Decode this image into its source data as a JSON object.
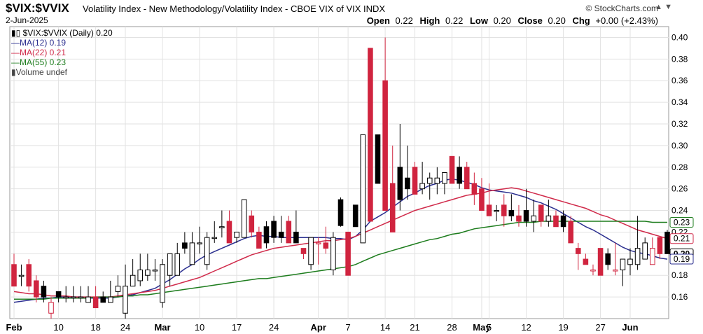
{
  "header": {
    "symbol": "$VIX:$VVIX",
    "description": "Volatility Index - New Methodology/Volatility Index - CBOE VIX of VIX  INDX",
    "date": "2-Jun-2025",
    "brand": "© StockCharts.com",
    "arrows": "▲ ▼",
    "ohlc": {
      "open_label": "Open",
      "open": "0.22",
      "high_label": "High",
      "high": "0.22",
      "low_label": "Low",
      "low": "0.20",
      "close_label": "Close",
      "close": "0.20",
      "chg_label": "Chg",
      "chg": "+0.00 (+2.43%)"
    }
  },
  "legend": [
    {
      "text": "$VIX:$VVIX (Daily) 0.20",
      "color": "#000000",
      "icon": "candle-icon"
    },
    {
      "text": "MA(12) 0.19",
      "color": "#2b2f8f",
      "icon": "line-icon"
    },
    {
      "text": "MA(22) 0.21",
      "color": "#d02a4a",
      "icon": "line-icon"
    },
    {
      "text": "MA(55) 0.23",
      "color": "#1e7d1e",
      "icon": "line-icon"
    },
    {
      "text": "Volume undef",
      "color": "#444444",
      "icon": "volume-bars-icon"
    }
  ],
  "chart_data": {
    "type": "candlestick",
    "ylim": [
      0.14,
      0.41
    ],
    "y_ticks": [
      0.16,
      0.18,
      0.2,
      0.22,
      0.24,
      0.26,
      0.28,
      0.3,
      0.32,
      0.34,
      0.36,
      0.38,
      0.4
    ],
    "y_tick_labels": [
      "0.16",
      "0.18",
      "0.20",
      "0.22",
      "0.24",
      "0.26",
      "0.28",
      "0.30",
      "0.32",
      "0.34",
      "0.36",
      "0.38",
      "0.40"
    ],
    "x_ticks": [
      {
        "label": "Feb",
        "index": 0
      },
      {
        "label": "10",
        "index": 6
      },
      {
        "label": "18",
        "index": 11
      },
      {
        "label": "24",
        "index": 15
      },
      {
        "label": "Mar",
        "index": 20
      },
      {
        "label": "10",
        "index": 25
      },
      {
        "label": "17",
        "index": 30
      },
      {
        "label": "24",
        "index": 35
      },
      {
        "label": "Apr",
        "index": 41
      },
      {
        "label": "7",
        "index": 45
      },
      {
        "label": "14",
        "index": 50
      },
      {
        "label": "21",
        "index": 54
      },
      {
        "label": "28",
        "index": 59
      },
      {
        "label": "May",
        "index": 63
      },
      {
        "label": "5",
        "index": 64
      },
      {
        "label": "12",
        "index": 69
      },
      {
        "label": "19",
        "index": 74
      },
      {
        "label": "27",
        "index": 79
      },
      {
        "label": "Jun",
        "index": 83
      }
    ],
    "candles": [
      {
        "o": 0.19,
        "h": 0.2,
        "l": 0.17,
        "c": 0.17
      },
      {
        "o": 0.18,
        "h": 0.19,
        "l": 0.17,
        "c": 0.18
      },
      {
        "o": 0.19,
        "h": 0.195,
        "l": 0.165,
        "c": 0.17
      },
      {
        "o": 0.175,
        "h": 0.18,
        "l": 0.155,
        "c": 0.16
      },
      {
        "o": 0.17,
        "h": 0.175,
        "l": 0.155,
        "c": 0.16
      },
      {
        "o": 0.145,
        "h": 0.16,
        "l": 0.14,
        "c": 0.155
      },
      {
        "o": 0.165,
        "h": 0.165,
        "l": 0.155,
        "c": 0.16
      },
      {
        "o": 0.16,
        "h": 0.17,
        "l": 0.155,
        "c": 0.16
      },
      {
        "o": 0.16,
        "h": 0.17,
        "l": 0.155,
        "c": 0.16
      },
      {
        "o": 0.16,
        "h": 0.17,
        "l": 0.155,
        "c": 0.16
      },
      {
        "o": 0.155,
        "h": 0.17,
        "l": 0.155,
        "c": 0.16
      },
      {
        "o": 0.16,
        "h": 0.17,
        "l": 0.15,
        "c": 0.15
      },
      {
        "o": 0.16,
        "h": 0.165,
        "l": 0.155,
        "c": 0.155
      },
      {
        "o": 0.155,
        "h": 0.175,
        "l": 0.155,
        "c": 0.16
      },
      {
        "o": 0.165,
        "h": 0.18,
        "l": 0.16,
        "c": 0.17
      },
      {
        "o": 0.145,
        "h": 0.19,
        "l": 0.14,
        "c": 0.17
      },
      {
        "o": 0.17,
        "h": 0.195,
        "l": 0.17,
        "c": 0.18
      },
      {
        "o": 0.175,
        "h": 0.2,
        "l": 0.17,
        "c": 0.185
      },
      {
        "o": 0.18,
        "h": 0.2,
        "l": 0.175,
        "c": 0.185
      },
      {
        "o": 0.185,
        "h": 0.195,
        "l": 0.175,
        "c": 0.185
      },
      {
        "o": 0.155,
        "h": 0.195,
        "l": 0.15,
        "c": 0.19
      },
      {
        "o": 0.18,
        "h": 0.2,
        "l": 0.17,
        "c": 0.2
      },
      {
        "o": 0.18,
        "h": 0.21,
        "l": 0.18,
        "c": 0.2
      },
      {
        "o": 0.21,
        "h": 0.22,
        "l": 0.2,
        "c": 0.205
      },
      {
        "o": 0.19,
        "h": 0.22,
        "l": 0.19,
        "c": 0.21
      },
      {
        "o": 0.21,
        "h": 0.225,
        "l": 0.2,
        "c": 0.21
      },
      {
        "o": 0.19,
        "h": 0.22,
        "l": 0.185,
        "c": 0.215
      },
      {
        "o": 0.215,
        "h": 0.23,
        "l": 0.21,
        "c": 0.215
      },
      {
        "o": 0.225,
        "h": 0.24,
        "l": 0.215,
        "c": 0.225
      },
      {
        "o": 0.23,
        "h": 0.24,
        "l": 0.21,
        "c": 0.21
      },
      {
        "o": 0.215,
        "h": 0.22,
        "l": 0.21,
        "c": 0.22
      },
      {
        "o": 0.215,
        "h": 0.25,
        "l": 0.215,
        "c": 0.25
      },
      {
        "o": 0.235,
        "h": 0.24,
        "l": 0.215,
        "c": 0.22
      },
      {
        "o": 0.22,
        "h": 0.225,
        "l": 0.205,
        "c": 0.205
      },
      {
        "o": 0.225,
        "h": 0.23,
        "l": 0.205,
        "c": 0.21
      },
      {
        "o": 0.23,
        "h": 0.235,
        "l": 0.21,
        "c": 0.215
      },
      {
        "o": 0.22,
        "h": 0.235,
        "l": 0.21,
        "c": 0.215
      },
      {
        "o": 0.23,
        "h": 0.235,
        "l": 0.21,
        "c": 0.21
      },
      {
        "o": 0.22,
        "h": 0.24,
        "l": 0.21,
        "c": 0.21
      },
      {
        "o": 0.205,
        "h": 0.205,
        "l": 0.195,
        "c": 0.2
      },
      {
        "o": 0.19,
        "h": 0.215,
        "l": 0.185,
        "c": 0.215
      },
      {
        "o": 0.21,
        "h": 0.215,
        "l": 0.19,
        "c": 0.21
      },
      {
        "o": 0.21,
        "h": 0.225,
        "l": 0.2,
        "c": 0.205
      },
      {
        "o": 0.185,
        "h": 0.22,
        "l": 0.18,
        "c": 0.215
      },
      {
        "o": 0.25,
        "h": 0.252,
        "l": 0.225,
        "c": 0.226
      },
      {
        "o": 0.22,
        "h": 0.22,
        "l": 0.18,
        "c": 0.18
      },
      {
        "o": 0.245,
        "h": 0.245,
        "l": 0.225,
        "c": 0.225
      },
      {
        "o": 0.21,
        "h": 0.31,
        "l": 0.21,
        "c": 0.31
      },
      {
        "o": 0.39,
        "h": 0.39,
        "l": 0.23,
        "c": 0.23
      },
      {
        "o": 0.31,
        "h": 0.31,
        "l": 0.265,
        "c": 0.265
      },
      {
        "o": 0.36,
        "h": 0.4,
        "l": 0.24,
        "c": 0.24
      },
      {
        "o": 0.265,
        "h": 0.3,
        "l": 0.22,
        "c": 0.22
      },
      {
        "o": 0.28,
        "h": 0.32,
        "l": 0.24,
        "c": 0.25
      },
      {
        "o": 0.27,
        "h": 0.3,
        "l": 0.25,
        "c": 0.26
      },
      {
        "o": 0.28,
        "h": 0.285,
        "l": 0.255,
        "c": 0.255
      },
      {
        "o": 0.26,
        "h": 0.285,
        "l": 0.255,
        "c": 0.265
      },
      {
        "o": 0.265,
        "h": 0.275,
        "l": 0.25,
        "c": 0.27
      },
      {
        "o": 0.265,
        "h": 0.28,
        "l": 0.255,
        "c": 0.27
      },
      {
        "o": 0.265,
        "h": 0.275,
        "l": 0.255,
        "c": 0.275
      },
      {
        "o": 0.29,
        "h": 0.29,
        "l": 0.265,
        "c": 0.265
      },
      {
        "o": 0.28,
        "h": 0.29,
        "l": 0.26,
        "c": 0.265
      },
      {
        "o": 0.28,
        "h": 0.285,
        "l": 0.26,
        "c": 0.26
      },
      {
        "o": 0.265,
        "h": 0.275,
        "l": 0.245,
        "c": 0.255
      },
      {
        "o": 0.26,
        "h": 0.27,
        "l": 0.24,
        "c": 0.24
      },
      {
        "o": 0.245,
        "h": 0.265,
        "l": 0.235,
        "c": 0.235
      },
      {
        "o": 0.24,
        "h": 0.245,
        "l": 0.23,
        "c": 0.24
      },
      {
        "o": 0.245,
        "h": 0.255,
        "l": 0.225,
        "c": 0.235
      },
      {
        "o": 0.24,
        "h": 0.255,
        "l": 0.23,
        "c": 0.235
      },
      {
        "o": 0.235,
        "h": 0.245,
        "l": 0.225,
        "c": 0.23
      },
      {
        "o": 0.24,
        "h": 0.26,
        "l": 0.225,
        "c": 0.23
      },
      {
        "o": 0.23,
        "h": 0.25,
        "l": 0.22,
        "c": 0.235
      },
      {
        "o": 0.245,
        "h": 0.245,
        "l": 0.225,
        "c": 0.23
      },
      {
        "o": 0.23,
        "h": 0.25,
        "l": 0.225,
        "c": 0.235
      },
      {
        "o": 0.235,
        "h": 0.24,
        "l": 0.225,
        "c": 0.225
      },
      {
        "o": 0.235,
        "h": 0.24,
        "l": 0.22,
        "c": 0.225
      },
      {
        "o": 0.23,
        "h": 0.235,
        "l": 0.21,
        "c": 0.21
      },
      {
        "o": 0.205,
        "h": 0.21,
        "l": 0.185,
        "c": 0.2
      },
      {
        "o": 0.195,
        "h": 0.2,
        "l": 0.19,
        "c": 0.19
      },
      {
        "o": 0.185,
        "h": 0.19,
        "l": 0.18,
        "c": 0.185
      },
      {
        "o": 0.205,
        "h": 0.205,
        "l": 0.18,
        "c": 0.18
      },
      {
        "o": 0.2,
        "h": 0.205,
        "l": 0.185,
        "c": 0.19
      },
      {
        "o": 0.185,
        "h": 0.21,
        "l": 0.18,
        "c": 0.185
      },
      {
        "o": 0.185,
        "h": 0.195,
        "l": 0.17,
        "c": 0.195
      },
      {
        "o": 0.19,
        "h": 0.205,
        "l": 0.18,
        "c": 0.195
      },
      {
        "o": 0.19,
        "h": 0.235,
        "l": 0.185,
        "c": 0.205
      },
      {
        "o": 0.195,
        "h": 0.215,
        "l": 0.195,
        "c": 0.21
      },
      {
        "o": 0.19,
        "h": 0.215,
        "l": 0.19,
        "c": 0.205
      },
      {
        "o": 0.215,
        "h": 0.215,
        "l": 0.195,
        "c": 0.2
      },
      {
        "o": 0.22,
        "h": 0.222,
        "l": 0.2,
        "c": 0.2
      }
    ],
    "series": [
      {
        "name": "MA(12)",
        "color": "#2b2f8f",
        "values": [
          0.155,
          0.156,
          0.157,
          0.158,
          0.159,
          0.159,
          0.16,
          0.16,
          0.16,
          0.16,
          0.159,
          0.159,
          0.159,
          0.159,
          0.16,
          0.161,
          0.162,
          0.164,
          0.166,
          0.168,
          0.172,
          0.176,
          0.181,
          0.186,
          0.19,
          0.195,
          0.199,
          0.202,
          0.205,
          0.208,
          0.211,
          0.214,
          0.216,
          0.217,
          0.216,
          0.216,
          0.215,
          0.215,
          0.215,
          0.215,
          0.215,
          0.215,
          0.215,
          0.214,
          0.214,
          0.213,
          0.216,
          0.222,
          0.23,
          0.234,
          0.238,
          0.243,
          0.248,
          0.253,
          0.256,
          0.26,
          0.263,
          0.265,
          0.268,
          0.269,
          0.268,
          0.266,
          0.264,
          0.261,
          0.259,
          0.258,
          0.257,
          0.256,
          0.254,
          0.252,
          0.249,
          0.247,
          0.244,
          0.241,
          0.237,
          0.233,
          0.229,
          0.225,
          0.222,
          0.218,
          0.214,
          0.21,
          0.206,
          0.203,
          0.201,
          0.2,
          0.198,
          0.196,
          0.195
        ]
      },
      {
        "name": "MA(22)",
        "color": "#d02a4a",
        "values": [
          0.165,
          0.164,
          0.163,
          0.163,
          0.162,
          0.161,
          0.161,
          0.161,
          0.16,
          0.16,
          0.16,
          0.16,
          0.16,
          0.16,
          0.161,
          0.162,
          0.163,
          0.164,
          0.165,
          0.166,
          0.168,
          0.17,
          0.172,
          0.174,
          0.176,
          0.178,
          0.181,
          0.184,
          0.187,
          0.19,
          0.193,
          0.196,
          0.199,
          0.201,
          0.203,
          0.205,
          0.206,
          0.207,
          0.208,
          0.209,
          0.21,
          0.211,
          0.212,
          0.212,
          0.213,
          0.214,
          0.216,
          0.219,
          0.222,
          0.225,
          0.228,
          0.231,
          0.234,
          0.237,
          0.24,
          0.242,
          0.244,
          0.246,
          0.248,
          0.25,
          0.252,
          0.254,
          0.255,
          0.256,
          0.258,
          0.259,
          0.26,
          0.261,
          0.26,
          0.258,
          0.256,
          0.254,
          0.252,
          0.25,
          0.248,
          0.246,
          0.244,
          0.242,
          0.239,
          0.236,
          0.234,
          0.231,
          0.228,
          0.225,
          0.222,
          0.22,
          0.218,
          0.216,
          0.214
        ]
      },
      {
        "name": "MA(55)",
        "color": "#1e7d1e",
        "values": [
          0.158,
          0.158,
          0.158,
          0.158,
          0.158,
          0.159,
          0.159,
          0.159,
          0.159,
          0.159,
          0.159,
          0.16,
          0.16,
          0.16,
          0.16,
          0.161,
          0.161,
          0.162,
          0.162,
          0.163,
          0.164,
          0.165,
          0.166,
          0.167,
          0.168,
          0.169,
          0.17,
          0.171,
          0.172,
          0.173,
          0.174,
          0.175,
          0.176,
          0.177,
          0.177,
          0.178,
          0.179,
          0.18,
          0.181,
          0.182,
          0.183,
          0.184,
          0.185,
          0.186,
          0.187,
          0.188,
          0.19,
          0.193,
          0.196,
          0.199,
          0.201,
          0.203,
          0.205,
          0.207,
          0.209,
          0.211,
          0.213,
          0.214,
          0.216,
          0.218,
          0.219,
          0.221,
          0.223,
          0.224,
          0.225,
          0.226,
          0.227,
          0.228,
          0.229,
          0.229,
          0.229,
          0.23,
          0.23,
          0.23,
          0.23,
          0.23,
          0.23,
          0.23,
          0.23,
          0.23,
          0.23,
          0.23,
          0.23,
          0.23,
          0.23,
          0.23,
          0.229,
          0.229,
          0.229
        ]
      }
    ],
    "right_labels": [
      {
        "text": "0.23",
        "value": 0.229,
        "color": "#1e7d1e"
      },
      {
        "text": "0.21",
        "value": 0.214,
        "color": "#d02a4a"
      },
      {
        "text": "0.20",
        "value": 0.2,
        "color": "#000000"
      },
      {
        "text": "0.19",
        "value": 0.195,
        "color": "#2b2f8f"
      }
    ],
    "grid": true,
    "colors": {
      "up": "#ffffff",
      "down": "#000000",
      "up_red": "#d0243f"
    }
  }
}
